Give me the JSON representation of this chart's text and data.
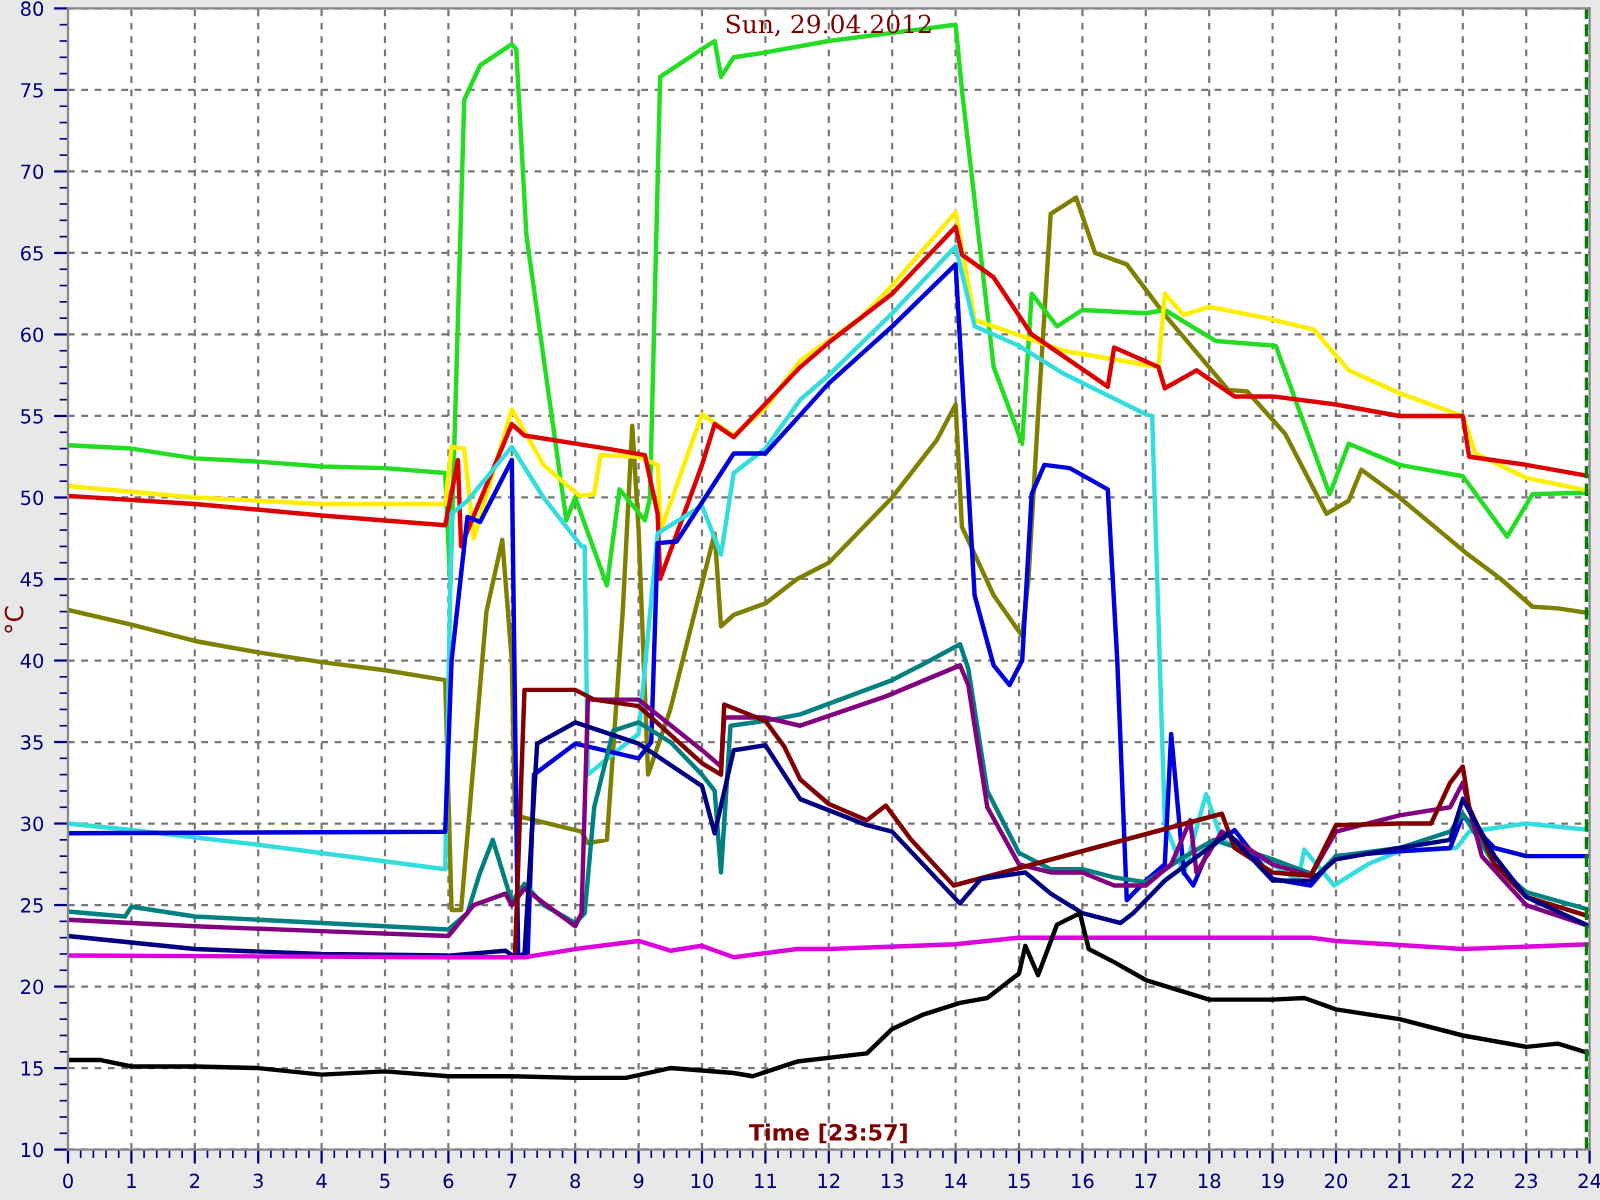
{
  "chart_data": {
    "type": "line",
    "title": "Sun, 29.04.2012",
    "xlabel": "Time [23:57]",
    "ylabel": "°C",
    "xlim": [
      0,
      24
    ],
    "ylim": [
      10,
      80
    ],
    "xticks": [
      0,
      1,
      2,
      3,
      4,
      5,
      6,
      7,
      8,
      9,
      10,
      11,
      12,
      13,
      14,
      15,
      16,
      17,
      18,
      19,
      20,
      21,
      22,
      23,
      24
    ],
    "yticks": [
      10,
      15,
      20,
      25,
      30,
      35,
      40,
      45,
      50,
      55,
      60,
      65,
      70,
      75,
      80
    ],
    "grid": true,
    "legend": false,
    "marker": "none",
    "line_style": "solid",
    "ref_lines": [
      {
        "axis": "x",
        "value": 23.95,
        "color": "#008000",
        "line_style": "dashed"
      }
    ],
    "series": [
      {
        "color": "#808000",
        "x": [
          0,
          1,
          2,
          3,
          4,
          5,
          5.95,
          6.05,
          6.2,
          6.6,
          6.85,
          7.0,
          7.05,
          8.1,
          8.2,
          8.5,
          8.75,
          8.9,
          9.0,
          9.15,
          9.5,
          10.2,
          10.3,
          10.5,
          11,
          11.5,
          12,
          13,
          13.7,
          14.0,
          14.1,
          14.6,
          15.05,
          15.15,
          15.3,
          15.5,
          15.9,
          16.2,
          16.7,
          17.3,
          18.3,
          18.6,
          19.2,
          19.85,
          20.2,
          20.4,
          21,
          22.05,
          22.6,
          23.1,
          23.5,
          24
        ],
        "values": [
          43.1,
          42.2,
          41.2,
          40.5,
          39.9,
          39.4,
          38.8,
          24.7,
          24.7,
          43,
          47.4,
          40,
          30.5,
          29.5,
          28.8,
          29,
          43,
          54.4,
          48,
          33,
          37,
          47.8,
          42.1,
          42.8,
          43.5,
          45,
          46,
          50,
          53.5,
          55.7,
          48.2,
          44,
          41.5,
          45,
          55,
          67.4,
          68.4,
          65,
          64.3,
          61.2,
          56.6,
          56.5,
          53.9,
          49,
          49.8,
          51.7,
          50,
          46.6,
          45,
          43.3,
          43.2,
          42.9
        ]
      },
      {
        "color": "#22dd22",
        "x": [
          0,
          1,
          2,
          3,
          4,
          5,
          5.95,
          6.03,
          6.25,
          6.5,
          7.0,
          7.07,
          7.23,
          7.86,
          8.0,
          8.5,
          8.7,
          9.1,
          9.18,
          9.34,
          10.0,
          10.2,
          10.3,
          10.5,
          11,
          12,
          13,
          14.0,
          14.1,
          14.6,
          15.05,
          15.2,
          15.6,
          16,
          17,
          17.3,
          18.1,
          19.05,
          19.9,
          20.2,
          21,
          22,
          22.7,
          23.1,
          24
        ],
        "values": [
          53.2,
          53,
          52.4,
          52.2,
          51.9,
          51.8,
          51.5,
          44.6,
          74.4,
          76.5,
          77.8,
          77.5,
          66.1,
          48.6,
          50,
          44.6,
          50.5,
          48.6,
          50,
          75.8,
          77.5,
          78,
          75.8,
          77,
          77.3,
          78,
          78.5,
          79,
          75,
          58,
          53.3,
          62.5,
          60.5,
          61.5,
          61.3,
          61.5,
          59.6,
          59.3,
          50.2,
          53.3,
          52,
          51.3,
          47.6,
          50.2,
          50.3
        ]
      },
      {
        "color": "#ffee00",
        "x": [
          0,
          2,
          4,
          5.95,
          6.05,
          6.25,
          6.4,
          7.0,
          7.5,
          8.07,
          8.3,
          8.4,
          9.0,
          9.3,
          9.35,
          10.0,
          10.5,
          11,
          11.55,
          12.5,
          13,
          14.0,
          14.3,
          15.7,
          17.2,
          17.3,
          17.6,
          18,
          18.9,
          19.65,
          20.2,
          21,
          22,
          22.2,
          23,
          24
        ],
        "values": [
          50.7,
          50,
          49.6,
          49.6,
          53.1,
          53,
          47.5,
          55.4,
          52,
          50.1,
          50.2,
          52.6,
          52.5,
          52,
          48,
          55.1,
          53.8,
          55.5,
          58.4,
          61,
          63,
          67.5,
          60.9,
          59,
          58,
          62.5,
          61.2,
          61.7,
          61,
          60.3,
          57.8,
          56.4,
          55,
          52.7,
          51.2,
          50.4
        ]
      },
      {
        "color": "#dd0000",
        "x": [
          0,
          2,
          4,
          5.95,
          6.15,
          6.2,
          7.0,
          7.2,
          8.5,
          9.1,
          9.3,
          9.34,
          10.0,
          10.2,
          10.5,
          11.55,
          12,
          13,
          14.0,
          14.1,
          14.6,
          15.2,
          16.4,
          16.5,
          17.2,
          17.3,
          17.8,
          18.4,
          19,
          20,
          21,
          22.0,
          22.1,
          23,
          24
        ],
        "values": [
          50.1,
          49.6,
          48.9,
          48.3,
          52.3,
          47,
          54.5,
          53.8,
          53,
          52.6,
          49,
          45,
          52,
          54.5,
          53.7,
          58,
          59.5,
          62.5,
          66.6,
          64.9,
          63.5,
          60,
          56.8,
          59.2,
          58,
          56.7,
          57.8,
          56.2,
          56.2,
          55.7,
          55,
          55,
          52.5,
          52,
          51.3
        ]
      },
      {
        "color": "#33dddd",
        "x": [
          0,
          1,
          3,
          5.95,
          6.05,
          6.3,
          7.0,
          7.5,
          8.1,
          8.15,
          8.2,
          8.8,
          9.0,
          9.3,
          10.0,
          10.3,
          10.5,
          11,
          11.55,
          12,
          13,
          14.0,
          14.3,
          15.0,
          15.7,
          17.0,
          17.1,
          17.3,
          17.5,
          17.6,
          17.95,
          18.2,
          19,
          19.4,
          19.5,
          19.97,
          20.5,
          21,
          21.9,
          22.1,
          23,
          24
        ],
        "values": [
          30,
          29.6,
          28.7,
          27.2,
          49,
          49.8,
          53.1,
          50,
          47,
          47,
          33,
          34.9,
          35.5,
          47.8,
          49.5,
          46.5,
          51.5,
          53,
          56,
          57.5,
          61.3,
          65.4,
          60.5,
          59.3,
          57.6,
          55.1,
          55,
          30,
          28,
          26.9,
          31.8,
          29,
          27.5,
          26.5,
          28.4,
          26.2,
          27.5,
          28.3,
          28.5,
          29.5,
          30,
          29.6
        ]
      },
      {
        "color": "#0000dd",
        "x": [
          0,
          5.95,
          6.05,
          6.3,
          6.5,
          7.0,
          7.1,
          7.25,
          7.35,
          8,
          9,
          9.2,
          9.3,
          9.6,
          10.5,
          11,
          12,
          13,
          14.0,
          14.3,
          14.6,
          14.85,
          15.05,
          15.2,
          15.4,
          15.8,
          16.4,
          16.55,
          16.7,
          17.0,
          17.3,
          17.4,
          17.6,
          17.75,
          18.0,
          18.4,
          19,
          19.6,
          20,
          21,
          21.8,
          22,
          22.5,
          23,
          24
        ],
        "values": [
          29.4,
          29.5,
          40,
          48.8,
          48.5,
          52.3,
          21.9,
          22,
          33,
          34.9,
          34,
          35,
          47.2,
          47.3,
          52.7,
          52.7,
          57,
          60.5,
          64.3,
          44,
          39.7,
          38.5,
          40,
          50.2,
          52,
          51.8,
          50.5,
          40,
          25.3,
          26.5,
          27.5,
          35.5,
          27,
          26.2,
          28.5,
          29.6,
          26.6,
          26.2,
          28,
          28.3,
          28.5,
          30.5,
          28.5,
          28,
          28
        ]
      },
      {
        "color": "#008080",
        "x": [
          0,
          0.9,
          1.0,
          2,
          4,
          6,
          6.3,
          6.5,
          6.7,
          7.0,
          7.2,
          7.5,
          8,
          8.15,
          8.3,
          8.6,
          9,
          9.5,
          10,
          10.2,
          10.3,
          10.45,
          11,
          11.55,
          13,
          13.5,
          14.07,
          14.2,
          14.5,
          15,
          15.5,
          16,
          16.5,
          17,
          17.5,
          18.07,
          19,
          19.7,
          20,
          21,
          21.8,
          22,
          22.5,
          23,
          24
        ],
        "values": [
          24.6,
          24.3,
          24.9,
          24.3,
          23.9,
          23.5,
          24.5,
          27,
          29,
          25.2,
          26.3,
          25,
          23.9,
          24.5,
          31,
          35.7,
          36.2,
          35,
          33,
          32,
          27,
          36,
          36.3,
          36.7,
          38.8,
          39.8,
          41,
          39.5,
          32,
          28.2,
          27.2,
          27.2,
          26.7,
          26.4,
          27.7,
          29,
          27.8,
          26.8,
          28,
          28.5,
          29.5,
          30.6,
          27.5,
          25.8,
          24.7
        ]
      },
      {
        "color": "#800080",
        "x": [
          0,
          2,
          4,
          6,
          6.4,
          6.9,
          7.0,
          7.2,
          8,
          8.1,
          8.2,
          9,
          10,
          10.3,
          10.35,
          11,
          11.55,
          12.9,
          14.07,
          14.2,
          14.5,
          15,
          15.5,
          16,
          16.5,
          17,
          17.4,
          17.7,
          17.8,
          18.2,
          19,
          19.6,
          20,
          21,
          21.8,
          22,
          22.3,
          23,
          24
        ],
        "values": [
          24.1,
          23.7,
          23.4,
          23.1,
          25,
          25.7,
          25,
          26,
          23.7,
          24.5,
          37.6,
          37.6,
          34.5,
          33.5,
          36.5,
          36.5,
          36,
          37.8,
          39.7,
          38.5,
          31,
          27.5,
          27,
          27,
          26.2,
          26.2,
          27.5,
          30.2,
          27,
          29.5,
          27.5,
          26.8,
          29.5,
          30.5,
          31,
          32.5,
          28,
          25,
          23.7
        ]
      },
      {
        "color": "#800000",
        "x": [
          7.05,
          7.2,
          8,
          8.3,
          9,
          10,
          10.3,
          10.35,
          11,
          11.3,
          11.55,
          12,
          12.6,
          12.9,
          13.3,
          13.97,
          18.2,
          18.4,
          19,
          19.6,
          20,
          21,
          21.5,
          21.8,
          22.0,
          22.1,
          22.5,
          23,
          24
        ],
        "values": [
          21.9,
          38.2,
          38.2,
          37.6,
          37.2,
          33.7,
          33,
          37.3,
          36.3,
          34.7,
          32.7,
          31.2,
          30.2,
          31.1,
          29,
          26.2,
          30.6,
          28.5,
          27,
          26.8,
          29.9,
          30,
          30,
          32.5,
          33.5,
          31,
          27.5,
          25.5,
          24.3
        ]
      },
      {
        "color": "#000080",
        "x": [
          0,
          2,
          4,
          6,
          6.9,
          7.05,
          7.2,
          7.4,
          8,
          9,
          10,
          10.2,
          10.5,
          11,
          11.55,
          12.6,
          13,
          14.07,
          14.4,
          15.1,
          15.5,
          16,
          16.6,
          16.8,
          17.3,
          18.3,
          19,
          19.6,
          20,
          21,
          21.8,
          22,
          22.5,
          23,
          24
        ],
        "values": [
          23.1,
          22.3,
          22,
          21.9,
          22.2,
          21.8,
          22,
          34.9,
          36.2,
          34.9,
          32.3,
          29.4,
          34.5,
          34.8,
          31.5,
          29.9,
          29.5,
          25.1,
          26.6,
          27,
          25.7,
          24.5,
          23.9,
          24.5,
          26.5,
          29.4,
          26.5,
          26.5,
          27.8,
          28.5,
          29,
          31.5,
          28,
          25.5,
          23.7
        ]
      },
      {
        "color": "#dd00dd",
        "x": [
          0,
          6,
          7.2,
          8,
          9,
          9.5,
          10,
          10.5,
          11.5,
          12,
          14,
          15,
          16,
          19.6,
          20,
          22,
          24
        ],
        "values": [
          21.9,
          21.8,
          21.8,
          22.3,
          22.8,
          22.2,
          22.5,
          21.8,
          22.3,
          22.3,
          22.6,
          23,
          23,
          23,
          22.8,
          22.3,
          22.6
        ]
      },
      {
        "color": "#000000",
        "x": [
          0,
          0.5,
          1,
          2,
          3,
          4,
          5,
          6,
          7,
          8,
          8.8,
          9.5,
          10.5,
          10.8,
          11.5,
          12.6,
          13.0,
          13.5,
          14.07,
          14.5,
          15.0,
          15.1,
          15.3,
          15.6,
          15.96,
          16.1,
          16.5,
          17,
          18,
          19,
          19.5,
          20,
          21,
          22,
          23,
          23.5,
          24
        ],
        "values": [
          15.5,
          15.5,
          15.1,
          15.1,
          15,
          14.6,
          14.8,
          14.5,
          14.5,
          14.4,
          14.4,
          15,
          14.7,
          14.5,
          15.4,
          15.9,
          17.4,
          18.3,
          19,
          19.3,
          20.8,
          22.5,
          20.7,
          23.8,
          24.5,
          22.3,
          21.5,
          20.4,
          19.2,
          19.2,
          19.3,
          18.6,
          18,
          17,
          16.3,
          16.5,
          15.9
        ]
      }
    ]
  }
}
